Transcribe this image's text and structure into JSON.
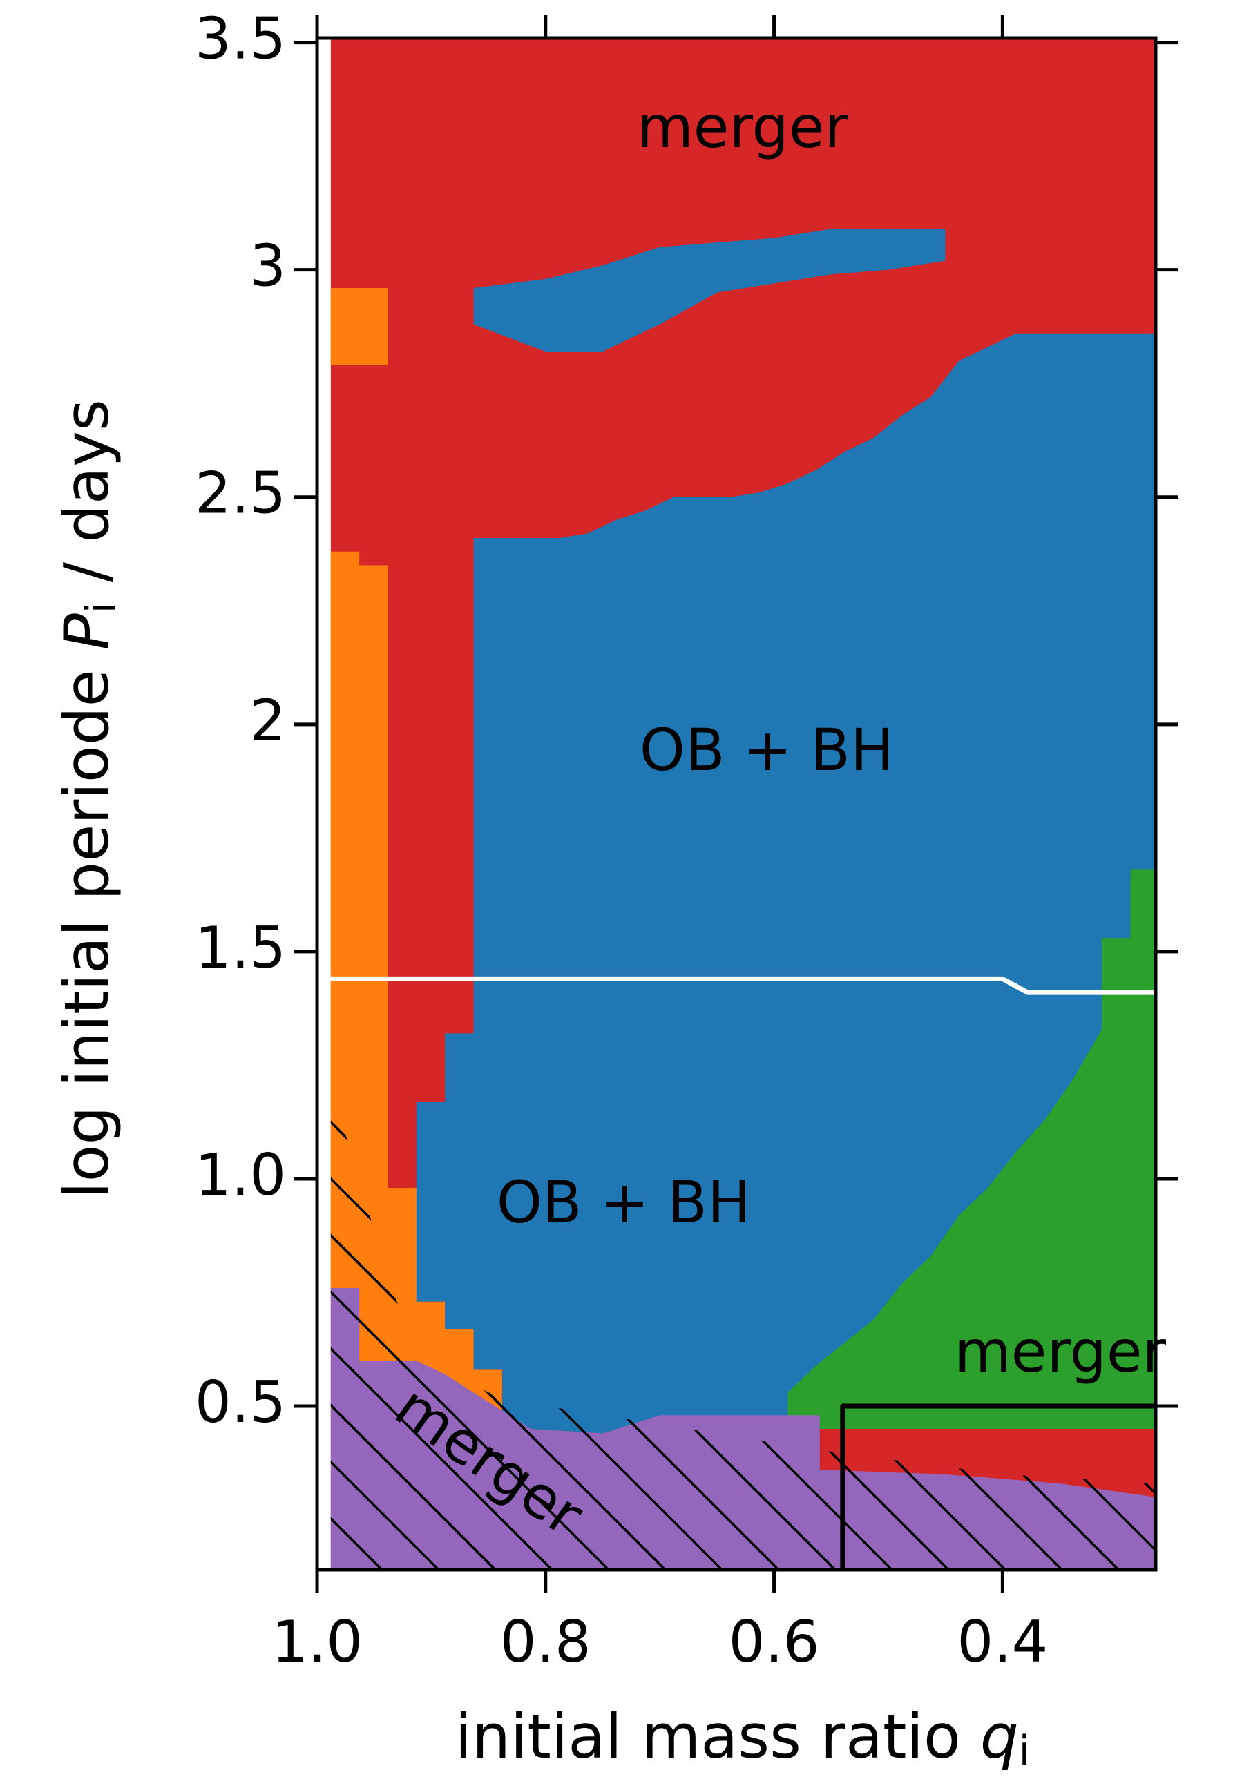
{
  "chart_data": {
    "type": "region",
    "xlabel": {
      "text": "initial mass ratio ",
      "var": "q",
      "sub": "i"
    },
    "ylabel": {
      "text": "log initial periode ",
      "var": "P",
      "sub": "i",
      "unit": " / days"
    },
    "xlim": [
      1.0,
      0.266
    ],
    "ylim": [
      0.14,
      3.51
    ],
    "xticks": [
      {
        "value": 1.0,
        "label": "1.0"
      },
      {
        "value": 0.8,
        "label": "0.8"
      },
      {
        "value": 0.6,
        "label": "0.6"
      },
      {
        "value": 0.4,
        "label": "0.4"
      }
    ],
    "yticks": [
      {
        "value": 0.5,
        "label": "0.5"
      },
      {
        "value": 1.0,
        "label": "1.0"
      },
      1.5,
      2.0,
      2.5,
      3.0,
      3.5
    ],
    "annotations": [
      "merger",
      "OB + BH",
      "OB + BH",
      "merger",
      "merger"
    ],
    "regions": [
      {
        "color": "#d62728",
        "x": [
          0.988,
          0.266,
          0.266,
          0.988
        ],
        "y": [
          0.14,
          0.14,
          3.51,
          3.51
        ]
      },
      {
        "color": "#ff7f0e",
        "x": [
          0.988,
          0.938,
          0.938,
          0.988
        ],
        "y": [
          2.79,
          2.79,
          2.96,
          2.96
        ]
      },
      {
        "color": "#ff7f0e",
        "x": [
          0.988,
          0.988,
          0.963,
          0.963,
          0.938,
          0.938,
          0.913,
          0.913,
          0.888,
          0.888,
          0.863,
          0.863,
          0.838,
          0.838,
          0.813,
          0.7,
          0.6,
          0.55,
          0.55
        ],
        "y": [
          0.2,
          2.38,
          2.38,
          2.35,
          2.35,
          0.98,
          0.98,
          0.73,
          0.73,
          0.67,
          0.67,
          0.58,
          0.58,
          0.46,
          0.44,
          0.4,
          0.33,
          0.3,
          0.2
        ]
      },
      {
        "color": "#1f77b4",
        "x": [
          0.863,
          0.863,
          0.8,
          0.75,
          0.7,
          0.65,
          0.6,
          0.55,
          0.45,
          0.45,
          0.5,
          0.55,
          0.6,
          0.65,
          0.7,
          0.75,
          0.8
        ],
        "y": [
          2.88,
          2.96,
          2.98,
          3.01,
          3.05,
          3.06,
          3.07,
          3.09,
          3.09,
          3.02,
          3.0,
          2.99,
          2.97,
          2.95,
          2.88,
          2.82,
          2.82
        ]
      },
      {
        "color": "#1f77b4",
        "x": [
          0.863,
          0.788,
          0.763,
          0.738,
          0.713,
          0.688,
          0.638,
          0.613,
          0.588,
          0.563,
          0.538,
          0.513,
          0.488,
          0.463,
          0.438,
          0.413,
          0.388,
          0.266,
          0.266,
          0.56,
          0.75,
          0.813,
          0.838,
          0.838,
          0.863,
          0.863,
          0.888,
          0.888,
          0.913,
          0.913,
          0.888,
          0.888,
          0.863
        ],
        "y": [
          2.41,
          2.41,
          2.42,
          2.45,
          2.47,
          2.5,
          2.5,
          2.51,
          2.53,
          2.56,
          2.6,
          2.63,
          2.68,
          2.72,
          2.8,
          2.83,
          2.86,
          2.86,
          0.48,
          0.48,
          0.44,
          0.45,
          0.48,
          0.58,
          0.58,
          0.67,
          0.67,
          0.73,
          0.73,
          1.17,
          1.17,
          1.32,
          1.32
        ]
      },
      {
        "color": "#2ca02c",
        "x": [
          0.266,
          0.288,
          0.288,
          0.313,
          0.313,
          0.338,
          0.363,
          0.388,
          0.413,
          0.438,
          0.463,
          0.488,
          0.513,
          0.538,
          0.563,
          0.588,
          0.588,
          0.266
        ],
        "y": [
          1.68,
          1.68,
          1.53,
          1.53,
          1.33,
          1.22,
          1.13,
          1.06,
          0.98,
          0.92,
          0.83,
          0.77,
          0.69,
          0.64,
          0.59,
          0.53,
          0.45,
          0.45
        ]
      },
      {
        "color": "#9467bd",
        "x": [
          0.988,
          0.988,
          0.963,
          0.963,
          0.913,
          0.888,
          0.863,
          0.838,
          0.813,
          0.75,
          0.7,
          0.56,
          0.56,
          0.45,
          0.35,
          0.266,
          0.266
        ],
        "y": [
          0.14,
          0.76,
          0.76,
          0.6,
          0.6,
          0.57,
          0.53,
          0.49,
          0.45,
          0.44,
          0.48,
          0.48,
          0.36,
          0.35,
          0.33,
          0.3,
          0.14
        ]
      },
      {
        "color": "#000000",
        "hatch": true,
        "x": [
          0.988,
          0.988,
          0.963,
          0.938,
          0.913,
          0.85,
          0.8,
          0.7,
          0.55,
          0.4,
          0.266,
          0.266
        ],
        "y": [
          0.14,
          1.2,
          1.0,
          0.78,
          0.62,
          0.53,
          0.5,
          0.46,
          0.4,
          0.35,
          0.33,
          0.14
        ]
      }
    ],
    "series": [
      {
        "color": "#ffffff",
        "x": [
          0.988,
          0.4,
          0.378,
          0.266
        ],
        "values": [
          1.44,
          1.44,
          1.41,
          1.41
        ]
      },
      {
        "color": "#000000",
        "x": [
          0.54,
          0.54,
          0.266
        ],
        "values": [
          0.14,
          0.5,
          0.5
        ]
      }
    ]
  }
}
